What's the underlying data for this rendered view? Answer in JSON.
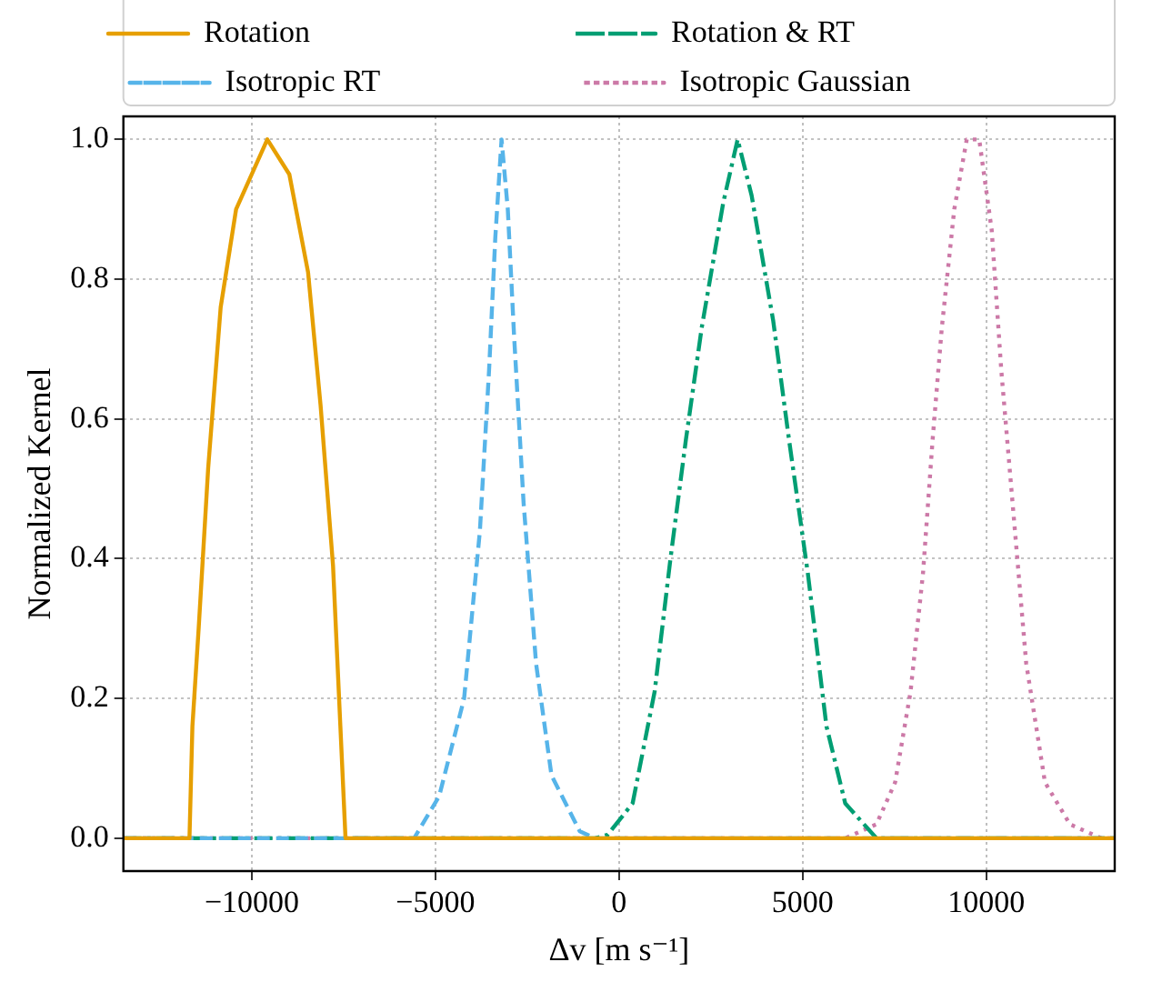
{
  "chart_data": {
    "type": "line",
    "xlabel": "Δv [m s⁻¹]",
    "ylabel": "Normalized Kernel",
    "xlim": [
      -13500,
      13500
    ],
    "ylim": [
      -0.047,
      1.033
    ],
    "xticks": [
      -10000,
      -5000,
      0,
      5000,
      10000
    ],
    "yticks": [
      {
        "value": 0,
        "label": "0.0"
      },
      {
        "value": 0.2,
        "label": "0.2"
      },
      {
        "value": 0.4,
        "label": "0.4"
      },
      {
        "value": 0.6,
        "label": "0.6"
      },
      {
        "value": 0.8,
        "label": "0.8"
      },
      {
        "value": 1,
        "label": "1.0"
      }
    ],
    "grid": true,
    "legend": "top",
    "marker": "none",
    "series": [
      {
        "name": "Rotation",
        "color": "#e69f00",
        "line_style": "solid",
        "x": [
          -13500,
          -11700,
          -11620,
          -11450,
          -11190,
          -10850,
          -10430,
          -9580,
          -8980,
          -8470,
          -8130,
          -7790,
          -7590,
          -7450,
          13500
        ],
        "values": [
          0,
          0,
          0.16,
          0.3,
          0.53,
          0.76,
          0.9,
          1.0,
          0.95,
          0.81,
          0.62,
          0.39,
          0.16,
          0,
          0
        ]
      },
      {
        "name": "Isotropic RT",
        "color": "#56b4e9",
        "line_style": "dashed",
        "x": [
          -13500,
          -5580,
          -4900,
          -4220,
          -3790,
          -3540,
          -3370,
          -3200,
          -3030,
          -2860,
          -2600,
          -2260,
          -1840,
          -1070,
          -650,
          13500
        ],
        "values": [
          0,
          0,
          0.06,
          0.2,
          0.44,
          0.67,
          0.86,
          1.0,
          0.9,
          0.72,
          0.48,
          0.25,
          0.09,
          0.01,
          0,
          0
        ]
      },
      {
        "name": "Rotation & RT",
        "color": "#009e73",
        "line_style": "dashdot",
        "x": [
          -13500,
          -650,
          -310,
          370,
          970,
          1400,
          1820,
          2250,
          2840,
          3230,
          3610,
          4200,
          4630,
          5140,
          5650,
          6160,
          7010,
          13500
        ],
        "values": [
          0,
          0,
          0.005,
          0.05,
          0.21,
          0.4,
          0.57,
          0.73,
          0.91,
          1.0,
          0.92,
          0.74,
          0.57,
          0.38,
          0.16,
          0.05,
          0,
          0
        ]
      },
      {
        "name": "Isotropic Gaussian",
        "color": "#cc79a7",
        "line_style": "dotted",
        "x": [
          -13500,
          6160,
          7010,
          7520,
          7940,
          8280,
          8540,
          8790,
          9130,
          9470,
          9810,
          10150,
          10410,
          10750,
          11090,
          11600,
          12280,
          13130,
          13500
        ],
        "values": [
          0,
          0,
          0.02,
          0.08,
          0.21,
          0.38,
          0.57,
          0.73,
          0.9,
          1.0,
          1.0,
          0.87,
          0.67,
          0.46,
          0.25,
          0.08,
          0.02,
          0,
          0
        ]
      }
    ]
  }
}
